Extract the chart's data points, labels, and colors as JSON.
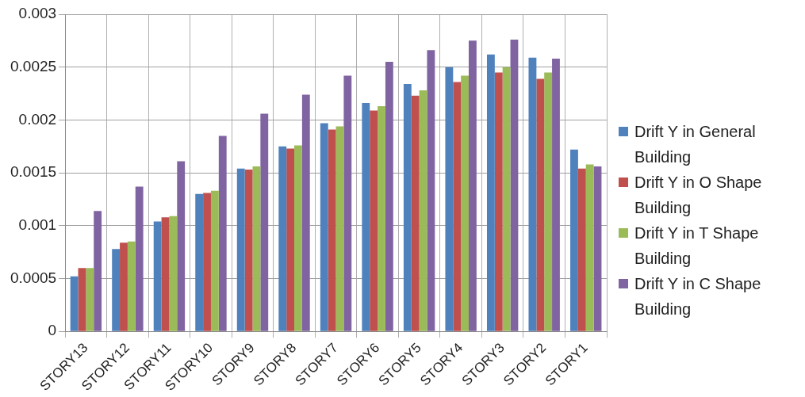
{
  "chart_data": {
    "type": "bar",
    "categories": [
      "STORY13",
      "STORY12",
      "STORY11",
      "STORY10",
      "STORY9",
      "STORY8",
      "STORY7",
      "STORY6",
      "STORY5",
      "STORY4",
      "STORY3",
      "STORY2",
      "STORY1"
    ],
    "series": [
      {
        "name": "Drift Y in General Building",
        "color": "#4f81bd",
        "values": [
          0.00052,
          0.00078,
          0.00104,
          0.0013,
          0.00154,
          0.00175,
          0.00197,
          0.00216,
          0.00234,
          0.0025,
          0.00262,
          0.00259,
          0.00172
        ]
      },
      {
        "name": "Drift Y in O Shape Building",
        "color": "#c0504d",
        "values": [
          0.0006,
          0.00084,
          0.00108,
          0.00131,
          0.00153,
          0.00173,
          0.00191,
          0.00209,
          0.00223,
          0.00236,
          0.00245,
          0.00239,
          0.00154
        ]
      },
      {
        "name": "Drift Y in T Shape Building",
        "color": "#9bbb59",
        "values": [
          0.0006,
          0.00085,
          0.00109,
          0.00133,
          0.00156,
          0.00176,
          0.00194,
          0.00213,
          0.00228,
          0.00242,
          0.0025,
          0.00245,
          0.00158
        ]
      },
      {
        "name": "Drift Y in C Shape Building",
        "color": "#8064a2",
        "values": [
          0.00114,
          0.00137,
          0.00161,
          0.00185,
          0.00206,
          0.00224,
          0.00242,
          0.00255,
          0.00266,
          0.00275,
          0.00276,
          0.00258,
          0.00156
        ]
      }
    ],
    "ylim": [
      0,
      0.003
    ],
    "yticks": [
      0,
      0.0005,
      0.001,
      0.0015,
      0.002,
      0.0025,
      0.003
    ],
    "grid": true,
    "legend": "right"
  }
}
